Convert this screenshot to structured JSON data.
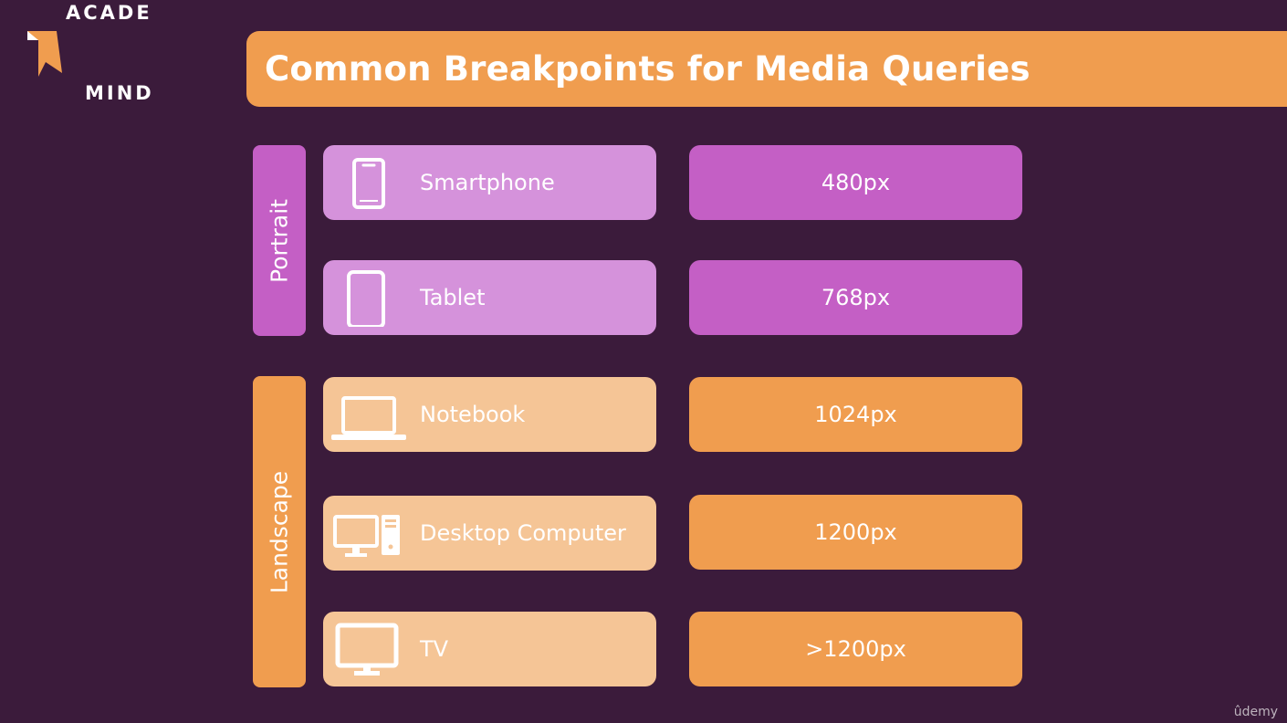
{
  "brand": {
    "logo_line1": "ACADE",
    "logo_line2": "MIND",
    "watermark": "ûdemy"
  },
  "slide": {
    "title": "Common Breakpoints for Media Queries"
  },
  "groups": {
    "portrait": "Portrait",
    "landscape": "Landscape"
  },
  "devices": [
    {
      "name": "Smartphone",
      "icon": "smartphone-icon",
      "breakpoint": "480px"
    },
    {
      "name": "Tablet",
      "icon": "tablet-icon",
      "breakpoint": "768px"
    },
    {
      "name": "Notebook",
      "icon": "laptop-icon",
      "breakpoint": "1024px"
    },
    {
      "name": "Desktop Computer",
      "icon": "desktop-icon",
      "breakpoint": "1200px"
    },
    {
      "name": "TV",
      "icon": "tv-icon",
      "breakpoint": ">1200px"
    }
  ],
  "colors": {
    "background": "#3b1b3b",
    "orange": "#f09d4f",
    "light_orange": "#f5c596",
    "purple": "#c45fc5",
    "light_purple": "#d592db"
  }
}
